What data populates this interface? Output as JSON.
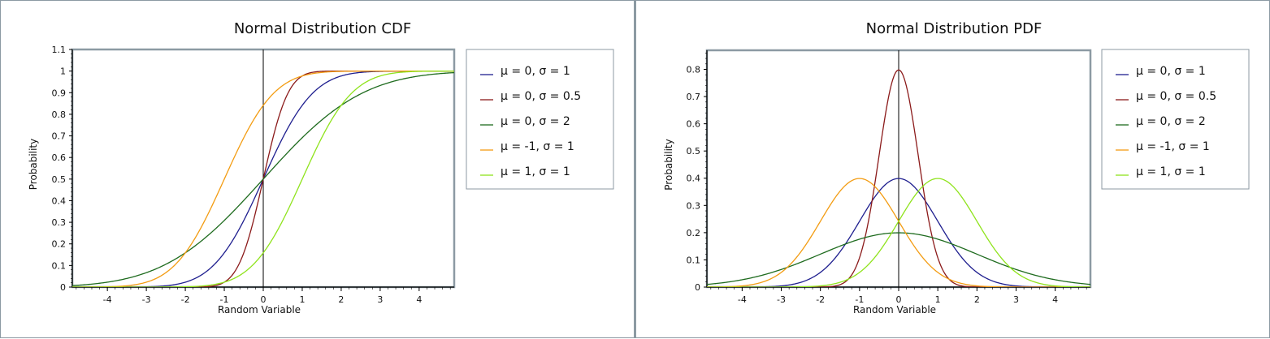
{
  "colors": {
    "frame": "#8c9aa3",
    "plot_border": "#8c9aa3",
    "axis": "#000000"
  },
  "chart_data": [
    {
      "type": "line",
      "title": "Normal Distribution CDF",
      "xlabel": "Random Variable",
      "ylabel": "Probability",
      "function": "cdf",
      "xlim": [
        -4.9,
        4.9
      ],
      "ylim": [
        0,
        1.1
      ],
      "x_ticks": [
        -4,
        -3,
        -2,
        -1,
        0,
        1,
        2,
        3,
        4
      ],
      "x_tick_labels": [
        "-4",
        "-3",
        "-2",
        "-1",
        "0",
        "1",
        "2",
        "3",
        "4"
      ],
      "y_ticks": [
        0,
        0.1,
        0.2,
        0.3,
        0.4,
        0.5,
        0.6,
        0.7,
        0.8,
        0.9,
        1,
        1.1
      ],
      "y_tick_labels": [
        "0",
        "0.1",
        "0.2",
        "0.3",
        "0.4",
        "0.5",
        "0.6",
        "0.7",
        "0.8",
        "0.9",
        "1",
        "1.1"
      ],
      "grid": false,
      "legend_position": "right",
      "series": [
        {
          "name": "μ = 0, σ = 1",
          "mu": 0,
          "sigma": 1,
          "color": "#1f1f8f"
        },
        {
          "name": "μ = 0, σ = 0.5",
          "mu": 0,
          "sigma": 0.5,
          "color": "#8b1a1a"
        },
        {
          "name": "μ = 0, σ = 2",
          "mu": 0,
          "sigma": 2,
          "color": "#1e6b1e"
        },
        {
          "name": "μ = -1, σ = 1",
          "mu": -1,
          "sigma": 1,
          "color": "#f39c12"
        },
        {
          "name": "μ = 1, σ = 1",
          "mu": 1,
          "sigma": 1,
          "color": "#8fe31c"
        }
      ]
    },
    {
      "type": "line",
      "title": "Normal Distribution PDF",
      "xlabel": "Random Variable",
      "ylabel": "Probability",
      "function": "pdf",
      "xlim": [
        -4.9,
        4.9
      ],
      "ylim": [
        0,
        0.87
      ],
      "x_ticks": [
        -4,
        -3,
        -2,
        -1,
        0,
        1,
        2,
        3,
        4
      ],
      "x_tick_labels": [
        "-4",
        "-3",
        "-2",
        "-1",
        "0",
        "1",
        "2",
        "3",
        "4"
      ],
      "y_ticks": [
        0,
        0.1,
        0.2,
        0.3,
        0.4,
        0.5,
        0.6,
        0.7,
        0.8
      ],
      "y_tick_labels": [
        "0",
        "0.1",
        "0.2",
        "0.3",
        "0.4",
        "0.5",
        "0.6",
        "0.7",
        "0.8"
      ],
      "grid": false,
      "legend_position": "right",
      "series": [
        {
          "name": "μ = 0, σ = 1",
          "mu": 0,
          "sigma": 1,
          "color": "#1f1f8f"
        },
        {
          "name": "μ = 0, σ = 0.5",
          "mu": 0,
          "sigma": 0.5,
          "color": "#8b1a1a"
        },
        {
          "name": "μ = 0, σ = 2",
          "mu": 0,
          "sigma": 2,
          "color": "#1e6b1e"
        },
        {
          "name": "μ = -1, σ = 1",
          "mu": -1,
          "sigma": 1,
          "color": "#f39c12"
        },
        {
          "name": "μ = 1, σ = 1",
          "mu": 1,
          "sigma": 1,
          "color": "#8fe31c"
        }
      ]
    }
  ]
}
